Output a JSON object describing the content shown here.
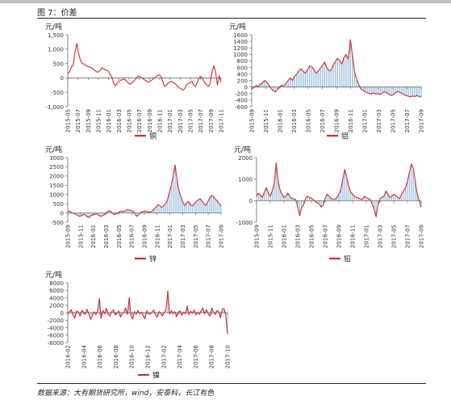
{
  "figure": {
    "caption": "图 7：价差",
    "source": "数据来源：大有期货研究所，wind，安泰科，长江有色"
  },
  "colors": {
    "line": "#d42a2a",
    "bar": "#9cc3e0",
    "axis": "#555555"
  },
  "chart_data": [
    {
      "type": "line",
      "unit_label": "元/吨",
      "series": [
        {
          "name": "铜"
        }
      ],
      "ylim": [
        -1000,
        1500
      ],
      "yticks": [
        "1,500",
        "1,000",
        "500",
        "0",
        "-500",
        "-1,000"
      ],
      "xticks": [
        "2015-05",
        "2015-07",
        "2015-09",
        "2015-11",
        "2016-01",
        "2016-03",
        "2016-05",
        "2016-07",
        "2016-09",
        "2016-11",
        "2017-01",
        "2017-03",
        "2017-05",
        "2017-07",
        "2017-09",
        "2017-11"
      ],
      "values": [
        150,
        220,
        380,
        450,
        900,
        1200,
        820,
        600,
        500,
        480,
        420,
        400,
        380,
        350,
        300,
        250,
        200,
        220,
        280,
        350,
        300,
        260,
        250,
        150,
        40,
        -150,
        -280,
        -200,
        -120,
        -80,
        -60,
        -40,
        -90,
        -160,
        -220,
        -180,
        -120,
        -60,
        30,
        60,
        30,
        -20,
        -60,
        -100,
        -150,
        -120,
        -80,
        -30,
        20,
        80,
        110,
        60,
        -120,
        -300,
        -250,
        -180,
        -140,
        -120,
        -160,
        -210,
        -280,
        -340,
        -370,
        -420,
        -380,
        -250,
        -200,
        -160,
        -120,
        -250,
        -300,
        -150,
        0,
        50,
        -40,
        -160,
        -240,
        -300,
        -200,
        180,
        420,
        200,
        -250,
        80,
        -160
      ]
    },
    {
      "type": "line",
      "unit_label": "元/吨",
      "series": [
        {
          "name": "铝"
        }
      ],
      "ylim": [
        -600,
        1600
      ],
      "yticks": [
        "1600",
        "1400",
        "1200",
        "1000",
        "800",
        "600",
        "400",
        "200",
        "0",
        "-200",
        "-400",
        "-600"
      ],
      "xticks": [
        "2015-09",
        "2015-11",
        "2016-01",
        "2016-03",
        "2016-05",
        "2016-07",
        "2016-09",
        "2016-11",
        "2017-01",
        "2017-03",
        "2017-05",
        "2017-07",
        "2017-09"
      ],
      "values": [
        -60,
        -10,
        40,
        10,
        80,
        120,
        200,
        150,
        60,
        -40,
        -110,
        -150,
        -80,
        0,
        60,
        40,
        110,
        200,
        280,
        200,
        330,
        400,
        500,
        560,
        480,
        420,
        530,
        650,
        620,
        540,
        420,
        490,
        580,
        660,
        760,
        600,
        500,
        520,
        680,
        780,
        880,
        820,
        700,
        900,
        1000,
        850,
        1450,
        950,
        450,
        220,
        60,
        -70,
        -100,
        -150,
        -180,
        -200,
        -210,
        -180,
        -220,
        -200,
        -230,
        -170,
        -140,
        -180,
        -220,
        -260,
        -230,
        -180,
        -130,
        -160,
        -190,
        -230,
        -260,
        -280,
        -300,
        -270,
        -290,
        -260,
        -290,
        -310
      ]
    },
    {
      "type": "line",
      "unit_label": "元/吨",
      "series": [
        {
          "name": "锌"
        }
      ],
      "ylim": [
        -500,
        3000
      ],
      "yticks": [
        "3000",
        "2500",
        "2000",
        "1500",
        "1000",
        "500",
        "0",
        "-500"
      ],
      "xticks": [
        "2015-09",
        "2015-11",
        "2016-01",
        "2016-03",
        "2016-05",
        "2016-07",
        "2016-09",
        "2016-11",
        "2017-01",
        "2017-03",
        "2017-05",
        "2017-07",
        "2017-09"
      ],
      "values": [
        100,
        80,
        20,
        -20,
        -60,
        -120,
        -180,
        -150,
        -100,
        -80,
        -200,
        -250,
        -150,
        -100,
        -80,
        -50,
        -120,
        -180,
        -150,
        -100,
        20,
        80,
        120,
        40,
        -80,
        -60,
        -20,
        60,
        100,
        60,
        120,
        180,
        160,
        120,
        100,
        -50,
        -180,
        -100,
        30,
        60,
        120,
        80,
        60,
        40,
        100,
        200,
        320,
        450,
        400,
        300,
        380,
        500,
        700,
        1100,
        1500,
        2000,
        2600,
        1800,
        1200,
        900,
        600,
        400,
        550,
        620,
        450,
        380,
        500,
        620,
        700,
        780,
        650,
        520,
        400,
        600,
        800,
        950,
        900,
        760,
        650,
        500,
        380
      ]
    },
    {
      "type": "line",
      "unit_label": "元/吨",
      "series": [
        {
          "name": "铅"
        }
      ],
      "ylim": [
        -1000,
        2000
      ],
      "yticks": [
        "2000",
        "1000",
        "0",
        "-1000"
      ],
      "xticks": [
        "2015-09",
        "2015-11",
        "2016-01",
        "2016-03",
        "2016-05",
        "2016-07",
        "2016-09",
        "2016-11",
        "2017-01",
        "2017-03",
        "2017-05",
        "2017-07",
        "2017-09"
      ],
      "values": [
        200,
        350,
        250,
        150,
        400,
        600,
        350,
        200,
        450,
        800,
        1750,
        900,
        500,
        300,
        150,
        200,
        350,
        180,
        100,
        80,
        50,
        -300,
        -700,
        -300,
        -200,
        100,
        200,
        150,
        120,
        50,
        -50,
        -100,
        -150,
        -300,
        -200,
        100,
        300,
        200,
        100,
        80,
        50,
        150,
        300,
        500,
        1000,
        1450,
        1100,
        700,
        400,
        300,
        200,
        150,
        120,
        80,
        50,
        200,
        150,
        100,
        50,
        -150,
        -400,
        -750,
        -200,
        100,
        150,
        200,
        450,
        300,
        150,
        200,
        300,
        250,
        150,
        100,
        300,
        450,
        600,
        900,
        1300,
        1700,
        1500,
        900,
        300,
        0,
        -300
      ]
    },
    {
      "type": "line",
      "unit_label": "元/吨",
      "series": [
        {
          "name": "镍"
        }
      ],
      "ylim": [
        -8000,
        8000
      ],
      "yticks": [
        "8000",
        "6000",
        "4000",
        "2000",
        "0",
        "-2000",
        "-4000",
        "-6000",
        "-8000"
      ],
      "xticks": [
        "2016-02",
        "2016-04",
        "2016-06",
        "2016-08",
        "2016-10",
        "2016-12",
        "2017-02",
        "2017-04",
        "2017-06",
        "2017-08",
        "2017-10"
      ],
      "values": [
        -300,
        300,
        800,
        -600,
        -1500,
        400,
        200,
        -900,
        600,
        200,
        -400,
        900,
        -300,
        -1800,
        -800,
        300,
        -500,
        400,
        3800,
        -1500,
        600,
        -300,
        1200,
        -400,
        -900,
        300,
        800,
        -600,
        -200,
        500,
        -1200,
        -300,
        200,
        1300,
        -500,
        4000,
        -800,
        -1700,
        300,
        -400,
        600,
        -300,
        200,
        -900,
        -1600,
        500,
        -200,
        -400,
        200,
        700,
        -600,
        -1200,
        300,
        -200,
        -900,
        200,
        800,
        5800,
        -400,
        600,
        -300,
        300,
        -1100,
        200,
        500,
        -700,
        200,
        -300,
        1800,
        -500,
        400,
        -200,
        700,
        -600,
        200,
        -400,
        600,
        1200,
        -300,
        800,
        -300,
        -900,
        1300,
        200,
        -500,
        600,
        300,
        -1400,
        900,
        1100,
        -600,
        -5800
      ]
    }
  ]
}
